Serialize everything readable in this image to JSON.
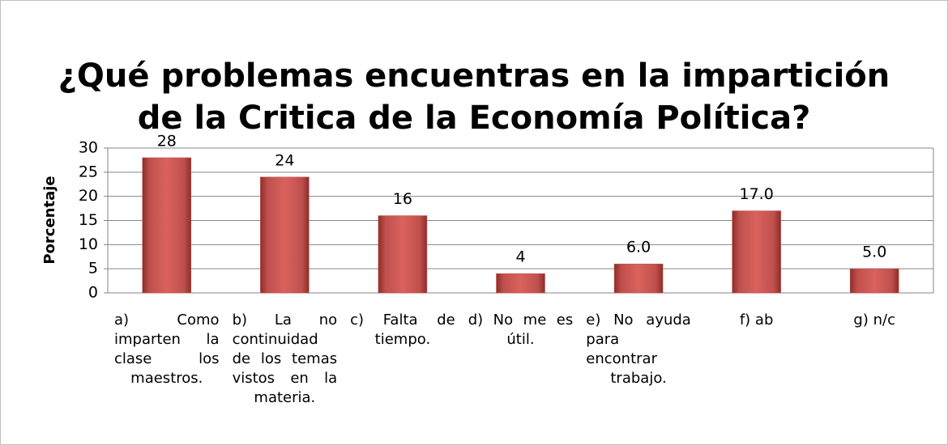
{
  "chart_data": {
    "type": "bar",
    "title": "¿Qué problemas encuentras en la impartición de la Critica de la Economía Política?",
    "y_label": "Porcentaje",
    "categories": [
      "a) Como imparten la clase los maestros.",
      "b) La no continuidad de los temas vistos en la materia.",
      "c) Falta de tiempo.",
      "d) No me es útil.",
      "e) No ayuda para encontrar trabajo.",
      "f) ab",
      "g) n/c"
    ],
    "values": [
      28,
      24,
      16,
      4,
      6,
      17,
      5
    ],
    "value_labels": [
      "28",
      "24",
      "16",
      "4",
      "6.0",
      "17.0",
      "5.0"
    ],
    "color": "#c0504d",
    "ylim": [
      0,
      30
    ],
    "yticks": [
      0,
      5,
      10,
      15,
      20,
      25,
      30
    ],
    "grid": true
  }
}
